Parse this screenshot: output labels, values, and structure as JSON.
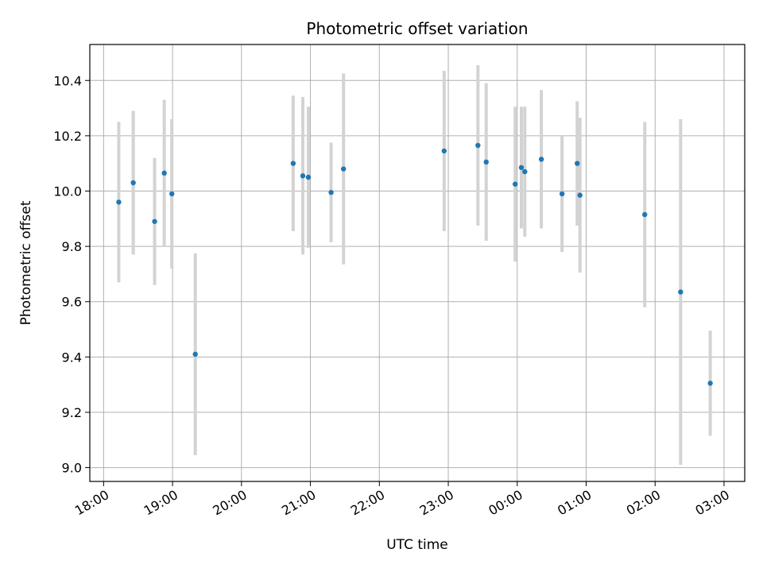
{
  "chart_data": {
    "type": "scatter",
    "title": "Photometric offset variation",
    "xlabel": "UTC time",
    "ylabel": "Photometric offset",
    "grid": true,
    "x_unit": "UTC time (hours, 24 = 00:00 next day)",
    "xlim": [
      17.8,
      27.3
    ],
    "ylim": [
      8.95,
      10.53
    ],
    "x_ticks": [
      {
        "value": 18,
        "label": "18:00"
      },
      {
        "value": 19,
        "label": "19:00"
      },
      {
        "value": 20,
        "label": "20:00"
      },
      {
        "value": 21,
        "label": "21:00"
      },
      {
        "value": 22,
        "label": "22:00"
      },
      {
        "value": 23,
        "label": "23:00"
      },
      {
        "value": 24,
        "label": "00:00"
      },
      {
        "value": 25,
        "label": "01:00"
      },
      {
        "value": 26,
        "label": "02:00"
      },
      {
        "value": 27,
        "label": "03:00"
      }
    ],
    "y_ticks": [
      {
        "value": 9.0,
        "label": "9.0"
      },
      {
        "value": 9.2,
        "label": "9.2"
      },
      {
        "value": 9.4,
        "label": "9.4"
      },
      {
        "value": 9.6,
        "label": "9.6"
      },
      {
        "value": 9.8,
        "label": "9.8"
      },
      {
        "value": 10.0,
        "label": "10.0"
      },
      {
        "value": 10.2,
        "label": "10.2"
      },
      {
        "value": 10.4,
        "label": "10.4"
      }
    ],
    "point_color": "#1f77b4",
    "errorbar_color": "#d3d3d3",
    "points": [
      {
        "x": 18.22,
        "y": 9.96,
        "err": 0.29
      },
      {
        "x": 18.43,
        "y": 10.03,
        "err": 0.26
      },
      {
        "x": 18.74,
        "y": 9.89,
        "err": 0.23
      },
      {
        "x": 18.88,
        "y": 10.065,
        "err": 0.265
      },
      {
        "x": 18.99,
        "y": 9.99,
        "err": 0.27
      },
      {
        "x": 19.33,
        "y": 9.41,
        "err": 0.365
      },
      {
        "x": 20.75,
        "y": 10.1,
        "err": 0.245
      },
      {
        "x": 20.89,
        "y": 10.055,
        "err": 0.285
      },
      {
        "x": 20.97,
        "y": 10.05,
        "err": 0.255
      },
      {
        "x": 21.3,
        "y": 9.995,
        "err": 0.18
      },
      {
        "x": 21.48,
        "y": 10.08,
        "err": 0.345
      },
      {
        "x": 22.94,
        "y": 10.145,
        "err": 0.29
      },
      {
        "x": 23.43,
        "y": 10.165,
        "err": 0.29
      },
      {
        "x": 23.55,
        "y": 10.105,
        "err": 0.285
      },
      {
        "x": 23.97,
        "y": 10.025,
        "err": 0.28
      },
      {
        "x": 24.06,
        "y": 10.085,
        "err": 0.22
      },
      {
        "x": 24.11,
        "y": 10.07,
        "err": 0.235
      },
      {
        "x": 24.35,
        "y": 10.115,
        "err": 0.25
      },
      {
        "x": 24.65,
        "y": 9.99,
        "err": 0.21
      },
      {
        "x": 24.87,
        "y": 10.1,
        "err": 0.225
      },
      {
        "x": 24.91,
        "y": 9.985,
        "err": 0.28
      },
      {
        "x": 25.85,
        "y": 9.915,
        "err": 0.335
      },
      {
        "x": 26.37,
        "y": 9.635,
        "err": 0.625
      },
      {
        "x": 26.8,
        "y": 9.305,
        "err": 0.19
      }
    ]
  }
}
